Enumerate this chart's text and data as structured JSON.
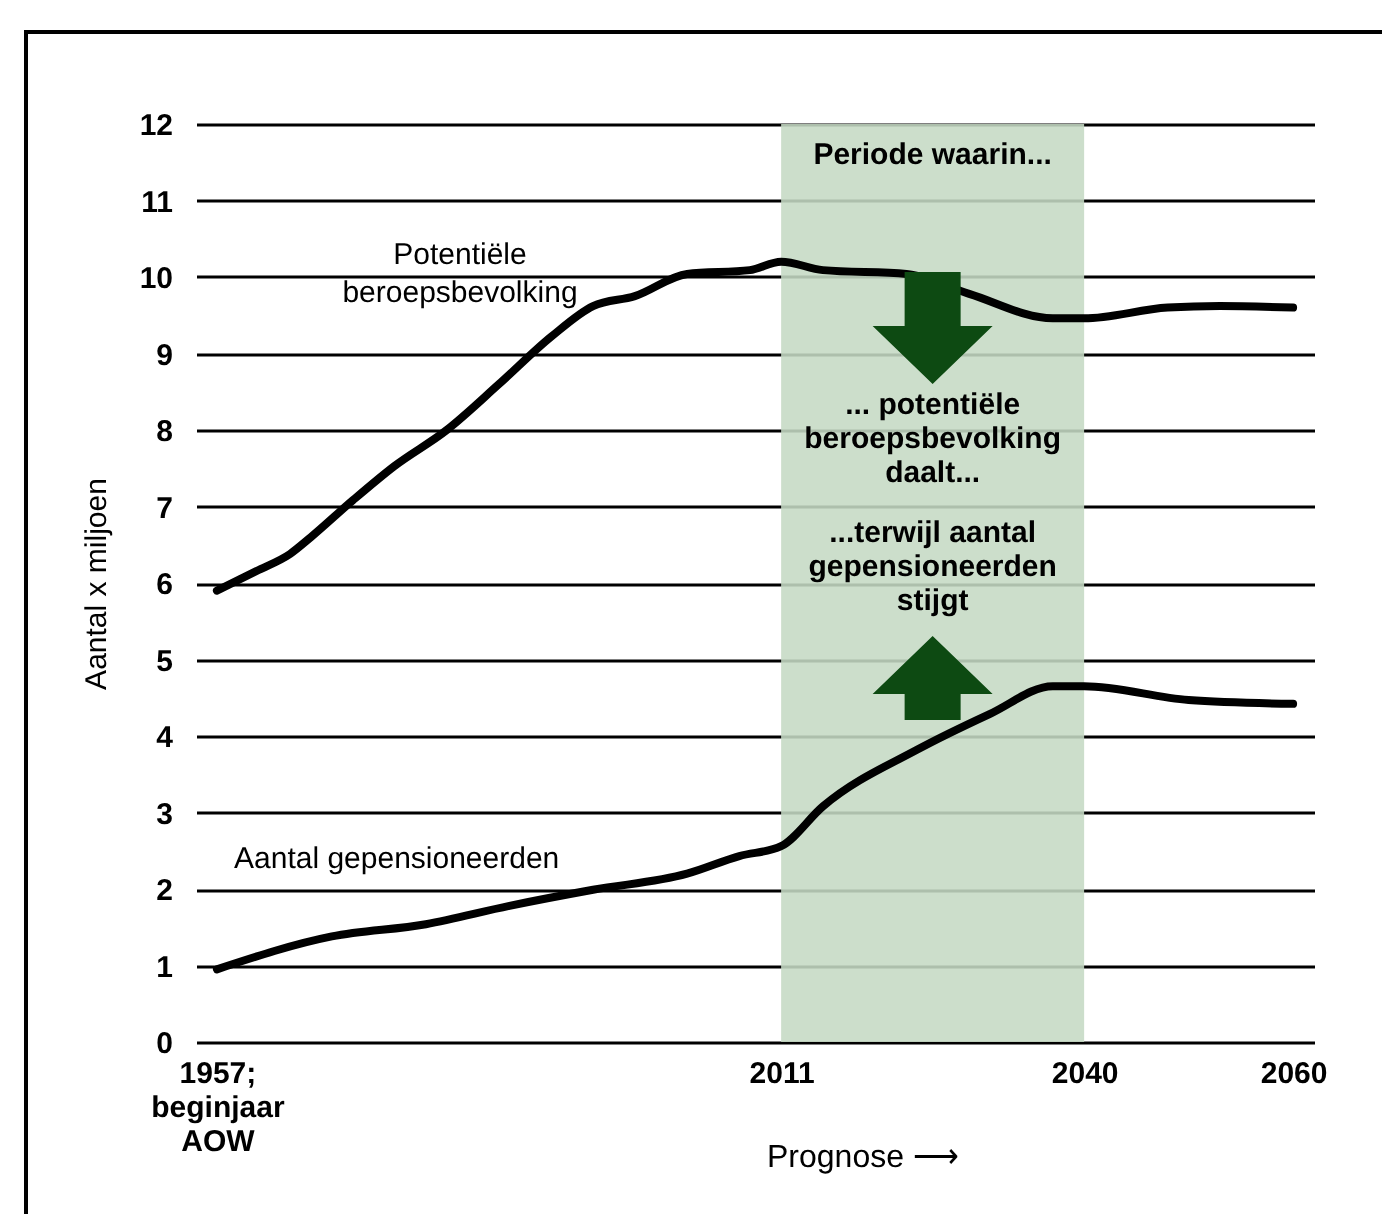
{
  "chart_data": {
    "type": "line",
    "xlabel": "Prognose ⟶",
    "ylabel": "Aantal x miljoen",
    "xlim": [
      1955,
      2062
    ],
    "xticks": [
      {
        "value": 1957,
        "label": "1957;\nbeginjaar\nAOW"
      },
      2011,
      2040,
      2060
    ],
    "ylim": [
      0,
      12
    ],
    "yticks": [
      0,
      1,
      2,
      3,
      4,
      5,
      6,
      7,
      8,
      9,
      10,
      11,
      12
    ],
    "grid": "y",
    "line_style": "solid",
    "series": [
      {
        "name": "Potentiële\nberoepsbevolking",
        "color": "#000000",
        "x": [
          1957,
          1961,
          1964,
          1966,
          1970,
          1974,
          1979,
          1984,
          1989,
          1993,
          1997,
          2002,
          2008,
          2011,
          2015,
          2023,
          2029,
          2037,
          2040,
          2048,
          2053,
          2060
        ],
        "values": [
          5.9,
          6.17,
          6.38,
          6.6,
          7.08,
          7.53,
          8.0,
          8.6,
          9.22,
          9.62,
          9.75,
          10.04,
          10.09,
          10.2,
          10.09,
          10.04,
          9.78,
          9.46,
          9.46,
          9.6,
          9.62,
          9.6
        ]
      },
      {
        "name": "Aantal gepensioneerden",
        "color": "#000000",
        "x": [
          1957,
          1968,
          1977,
          1985,
          1993,
          2002,
          2007,
          2011,
          2015,
          2024,
          2031,
          2037,
          2040,
          2050,
          2060
        ],
        "values": [
          0.95,
          1.38,
          1.54,
          1.78,
          1.99,
          2.2,
          2.43,
          2.56,
          3.08,
          3.82,
          4.29,
          4.65,
          4.65,
          4.47,
          4.42
        ]
      }
    ],
    "bands": [
      {
        "axis": "x",
        "from": 2011,
        "to": 2040,
        "label": "Periode waarin...",
        "color": "#c5dac4"
      }
    ],
    "annotations": [
      "... potentiële\nberoepsbevolking\ndaalt...",
      "...terwijl aantal\ngepensioneerden\nstijgt"
    ]
  }
}
